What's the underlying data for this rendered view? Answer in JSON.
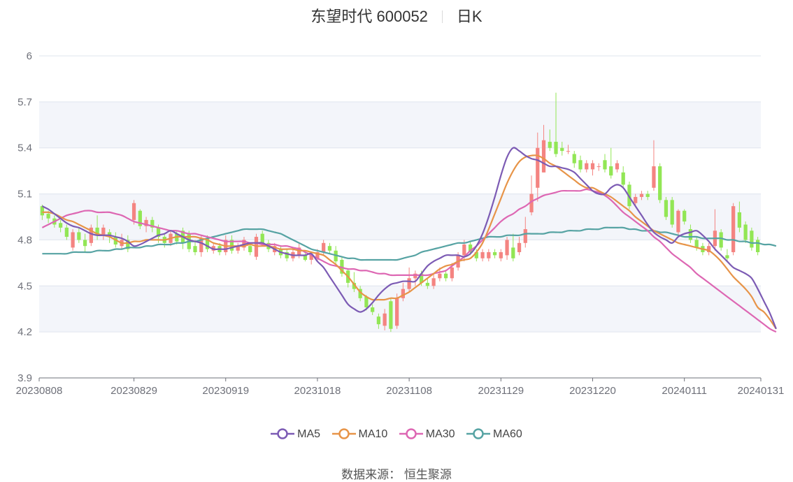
{
  "title": {
    "name_code": "东望时代 600052",
    "period": "日K"
  },
  "source": {
    "label": "数据来源：",
    "value": "恒生聚源"
  },
  "colors": {
    "up": "#f48481",
    "down": "#92e655",
    "ma5": "#7c5bb4",
    "ma10": "#e79448",
    "ma30": "#dd67b3",
    "ma60": "#56a3a3",
    "band": "#f3f5fa",
    "grid": "#dfe4ee",
    "axis": "#6e7079"
  },
  "chart_data": {
    "type": "candlestick",
    "ylim": [
      3.9,
      6.0
    ],
    "y_ticks": [
      "3.9",
      "4.2",
      "4.5",
      "4.8",
      "5.1",
      "5.4",
      "5.7",
      "6"
    ],
    "x_tick_labels": [
      "20230808",
      "20230829",
      "20230919",
      "20231018",
      "20231108",
      "20231129",
      "20231220",
      "20240111",
      "20240131"
    ],
    "x_tick_index": [
      0,
      15,
      30,
      45,
      60,
      75,
      90,
      105,
      120
    ],
    "candles": [
      [
        5.02,
        4.96,
        5.03,
        4.93
      ],
      [
        4.97,
        4.94,
        4.99,
        4.91
      ],
      [
        4.94,
        4.9,
        4.96,
        4.88
      ],
      [
        4.91,
        4.88,
        4.93,
        4.85
      ],
      [
        4.88,
        4.82,
        4.9,
        4.8
      ],
      [
        4.75,
        4.85,
        4.87,
        4.73
      ],
      [
        4.85,
        4.8,
        4.88,
        4.78
      ],
      [
        4.8,
        4.76,
        4.84,
        4.72
      ],
      [
        4.78,
        4.88,
        4.9,
        4.76
      ],
      [
        4.88,
        4.83,
        4.96,
        4.8
      ],
      [
        4.83,
        4.88,
        4.9,
        4.8
      ],
      [
        4.85,
        4.82,
        4.87,
        4.78
      ],
      [
        4.82,
        4.77,
        4.85,
        4.75
      ],
      [
        4.76,
        4.8,
        4.84,
        4.74
      ],
      [
        4.8,
        4.74,
        4.83,
        4.72
      ],
      [
        4.93,
        5.04,
        5.06,
        4.9
      ],
      [
        4.99,
        4.89,
        5.0,
        4.87
      ],
      [
        4.89,
        4.93,
        4.95,
        4.85
      ],
      [
        4.93,
        4.88,
        4.95,
        4.85
      ],
      [
        4.88,
        4.82,
        4.9,
        4.78
      ],
      [
        4.82,
        4.78,
        4.84,
        4.75
      ],
      [
        4.78,
        4.84,
        4.86,
        4.76
      ],
      [
        4.84,
        4.79,
        4.86,
        4.77
      ],
      [
        4.86,
        4.78,
        4.88,
        4.74
      ],
      [
        4.84,
        4.74,
        4.86,
        4.72
      ],
      [
        4.76,
        4.72,
        4.8,
        4.7
      ],
      [
        4.72,
        4.81,
        4.83,
        4.69
      ],
      [
        4.81,
        4.74,
        4.83,
        4.72
      ],
      [
        4.73,
        4.76,
        4.78,
        4.71
      ],
      [
        4.76,
        4.72,
        4.78,
        4.7
      ],
      [
        4.72,
        4.8,
        4.83,
        4.7
      ],
      [
        4.8,
        4.73,
        4.83,
        4.71
      ],
      [
        4.73,
        4.76,
        4.78,
        4.71
      ],
      [
        4.75,
        4.8,
        4.82,
        4.73
      ],
      [
        4.76,
        4.72,
        4.78,
        4.7
      ],
      [
        4.69,
        4.82,
        4.84,
        4.67
      ],
      [
        4.84,
        4.78,
        4.86,
        4.76
      ],
      [
        4.78,
        4.74,
        4.8,
        4.72
      ],
      [
        4.72,
        4.76,
        4.78,
        4.7
      ],
      [
        4.74,
        4.7,
        4.76,
        4.68
      ],
      [
        4.72,
        4.68,
        4.74,
        4.66
      ],
      [
        4.68,
        4.72,
        4.74,
        4.66
      ],
      [
        4.7,
        4.75,
        4.78,
        4.68
      ],
      [
        4.7,
        4.67,
        4.72,
        4.66
      ],
      [
        4.67,
        4.7,
        4.72,
        4.64
      ],
      [
        4.68,
        4.72,
        4.74,
        4.66
      ],
      [
        4.72,
        4.78,
        4.8,
        4.7
      ],
      [
        4.76,
        4.73,
        4.78,
        4.71
      ],
      [
        4.73,
        4.66,
        4.76,
        4.64
      ],
      [
        4.67,
        4.58,
        4.69,
        4.56
      ],
      [
        4.6,
        4.52,
        4.61,
        4.49
      ],
      [
        4.52,
        4.48,
        4.59,
        4.46
      ],
      [
        4.48,
        4.42,
        4.5,
        4.4
      ],
      [
        4.43,
        4.36,
        4.44,
        4.34
      ],
      [
        4.36,
        4.33,
        4.38,
        4.31
      ],
      [
        4.3,
        4.25,
        4.32,
        4.22
      ],
      [
        4.24,
        4.32,
        4.35,
        4.21
      ],
      [
        4.4,
        4.22,
        4.42,
        4.2
      ],
      [
        4.24,
        4.42,
        4.45,
        4.22
      ],
      [
        4.42,
        4.48,
        4.52,
        4.4
      ],
      [
        4.48,
        4.55,
        4.62,
        4.46
      ],
      [
        4.55,
        4.58,
        4.6,
        4.5
      ],
      [
        4.58,
        4.52,
        4.6,
        4.5
      ],
      [
        4.52,
        4.5,
        4.55,
        4.48
      ],
      [
        4.5,
        4.55,
        4.58,
        4.48
      ],
      [
        4.55,
        4.58,
        4.62,
        4.53
      ],
      [
        4.58,
        4.55,
        4.6,
        4.53
      ],
      [
        4.55,
        4.62,
        4.65,
        4.53
      ],
      [
        4.62,
        4.7,
        4.72,
        4.6
      ],
      [
        4.7,
        4.77,
        4.8,
        4.66
      ],
      [
        4.77,
        4.72,
        4.79,
        4.7
      ],
      [
        4.72,
        4.68,
        4.74,
        4.66
      ],
      [
        4.68,
        4.72,
        4.74,
        4.66
      ],
      [
        4.68,
        4.72,
        4.74,
        4.66
      ],
      [
        4.72,
        4.7,
        4.74,
        4.68
      ],
      [
        4.68,
        4.72,
        4.74,
        4.66
      ],
      [
        4.7,
        4.8,
        4.82,
        4.67
      ],
      [
        4.75,
        4.68,
        4.84,
        4.66
      ],
      [
        4.72,
        4.78,
        4.82,
        4.7
      ],
      [
        4.78,
        4.87,
        4.95,
        4.75
      ],
      [
        4.98,
        5.1,
        5.22,
        4.96
      ],
      [
        5.14,
        5.4,
        5.5,
        5.05
      ],
      [
        5.24,
        5.45,
        5.55,
        5.24
      ],
      [
        5.44,
        5.4,
        5.52,
        5.38
      ],
      [
        5.44,
        5.36,
        5.76,
        5.34
      ],
      [
        5.4,
        5.38,
        5.44,
        5.35
      ],
      [
        5.38,
        5.38,
        5.42,
        5.36
      ],
      [
        5.36,
        5.3,
        5.38,
        5.27
      ],
      [
        5.32,
        5.26,
        5.35,
        5.24
      ],
      [
        5.26,
        5.3,
        5.32,
        5.24
      ],
      [
        5.26,
        5.3,
        5.32,
        5.22
      ],
      [
        5.28,
        5.28,
        5.3,
        5.25
      ],
      [
        5.32,
        5.26,
        5.36,
        5.24
      ],
      [
        5.28,
        5.22,
        5.4,
        5.2
      ],
      [
        5.26,
        5.3,
        5.32,
        5.24
      ],
      [
        5.24,
        5.16,
        5.28,
        5.14
      ],
      [
        5.16,
        5.02,
        5.18,
        5.0
      ],
      [
        5.04,
        5.08,
        5.1,
        5.02
      ],
      [
        5.08,
        5.1,
        5.12,
        5.06
      ],
      [
        5.1,
        5.08,
        5.12,
        5.06
      ],
      [
        5.14,
        5.28,
        5.45,
        5.12
      ],
      [
        5.28,
        5.06,
        5.3,
        5.04
      ],
      [
        5.06,
        4.95,
        5.08,
        4.93
      ],
      [
        5.06,
        4.9,
        5.08,
        4.88
      ],
      [
        4.85,
        4.99,
        5.0,
        4.83
      ],
      [
        4.99,
        4.92,
        5.0,
        4.9
      ],
      [
        4.87,
        4.8,
        4.9,
        4.78
      ],
      [
        4.8,
        4.75,
        4.82,
        4.73
      ],
      [
        4.76,
        4.72,
        4.78,
        4.7
      ],
      [
        4.72,
        4.76,
        4.78,
        4.7
      ],
      [
        4.76,
        4.86,
        5.0,
        4.73
      ],
      [
        4.85,
        4.75,
        4.87,
        4.73
      ],
      [
        4.7,
        4.68,
        4.74,
        4.66
      ],
      [
        4.72,
        5.02,
        5.04,
        4.7
      ],
      [
        4.98,
        4.88,
        5.05,
        4.85
      ],
      [
        4.9,
        4.8,
        4.92,
        4.78
      ],
      [
        4.86,
        4.75,
        4.88,
        4.73
      ],
      [
        4.8,
        4.72,
        4.82,
        4.7
      ]
    ],
    "ma5": [
      5.02,
      5.0,
      4.97,
      4.94,
      4.91,
      4.89,
      4.88,
      4.86,
      4.84,
      4.83,
      4.83,
      4.83,
      4.82,
      4.81,
      4.79,
      4.76,
      4.77,
      4.79,
      4.81,
      4.83,
      4.84,
      4.86,
      4.84,
      4.82,
      4.8,
      4.79,
      4.78,
      4.76,
      4.74,
      4.74,
      4.74,
      4.75,
      4.76,
      4.77,
      4.78,
      4.78,
      4.78,
      4.76,
      4.74,
      4.72,
      4.71,
      4.7,
      4.7,
      4.7,
      4.71,
      4.66,
      4.62,
      4.56,
      4.5,
      4.44,
      4.38,
      4.35,
      4.33,
      4.35,
      4.39,
      4.44,
      4.48,
      4.51,
      4.52,
      4.53,
      4.53,
      4.53,
      4.58,
      4.63,
      4.66,
      4.68,
      4.7,
      4.7,
      4.7,
      4.69,
      4.71,
      4.76,
      4.84,
      4.95,
      5.08,
      5.22,
      5.34,
      5.4,
      5.38,
      5.35,
      5.33,
      5.32,
      5.3,
      5.28,
      5.28,
      5.27,
      5.26,
      5.24,
      5.2,
      5.16,
      5.12,
      5.1,
      5.1,
      5.14,
      5.16,
      5.14,
      5.08,
      5.02,
      4.96,
      4.9,
      4.85,
      4.82,
      4.8,
      4.78,
      4.82,
      4.84,
      4.85,
      4.86,
      4.83,
      4.79,
      4.74,
      4.7,
      4.66,
      4.62,
      4.6,
      4.58,
      4.55,
      4.48,
      4.4,
      4.32,
      4.22
    ],
    "ma10": [
      4.98,
      4.98,
      4.97,
      4.95,
      4.93,
      4.92,
      4.9,
      4.88,
      4.86,
      4.84,
      4.83,
      4.82,
      4.8,
      4.78,
      4.78,
      4.79,
      4.79,
      4.8,
      4.8,
      4.8,
      4.8,
      4.81,
      4.82,
      4.82,
      4.82,
      4.82,
      4.81,
      4.8,
      4.78,
      4.77,
      4.76,
      4.76,
      4.76,
      4.76,
      4.77,
      4.76,
      4.76,
      4.76,
      4.75,
      4.74,
      4.74,
      4.74,
      4.73,
      4.73,
      4.72,
      4.71,
      4.7,
      4.67,
      4.64,
      4.6,
      4.56,
      4.51,
      4.46,
      4.43,
      4.41,
      4.41,
      4.41,
      4.42,
      4.42,
      4.44,
      4.46,
      4.49,
      4.52,
      4.55,
      4.58,
      4.61,
      4.63,
      4.64,
      4.66,
      4.67,
      4.68,
      4.72,
      4.78,
      4.87,
      4.97,
      5.07,
      5.17,
      5.25,
      5.31,
      5.34,
      5.35,
      5.35,
      5.33,
      5.3,
      5.28,
      5.25,
      5.22,
      5.19,
      5.16,
      5.14,
      5.14,
      5.12,
      5.1,
      5.08,
      5.05,
      5.02,
      4.99,
      4.95,
      4.92,
      4.89,
      4.86,
      4.84,
      4.82,
      4.8,
      4.78,
      4.77,
      4.76,
      4.75,
      4.74,
      4.73,
      4.7,
      4.66,
      4.61,
      4.56,
      4.52,
      4.48,
      4.43,
      4.36,
      4.33,
      4.28,
      4.22
    ],
    "ma30": [
      4.88,
      4.9,
      4.92,
      4.94,
      4.96,
      4.97,
      4.98,
      4.99,
      4.99,
      4.98,
      4.98,
      4.98,
      4.97,
      4.96,
      4.94,
      4.92,
      4.91,
      4.9,
      4.89,
      4.88,
      4.87,
      4.86,
      4.86,
      4.85,
      4.84,
      4.84,
      4.83,
      4.82,
      4.81,
      4.8,
      4.79,
      4.79,
      4.79,
      4.79,
      4.78,
      4.78,
      4.77,
      4.77,
      4.77,
      4.76,
      4.76,
      4.75,
      4.74,
      4.72,
      4.7,
      4.68,
      4.66,
      4.64,
      4.63,
      4.62,
      4.61,
      4.61,
      4.6,
      4.6,
      4.59,
      4.58,
      4.58,
      4.57,
      4.57,
      4.57,
      4.57,
      4.57,
      4.57,
      4.57,
      4.58,
      4.59,
      4.6,
      4.63,
      4.66,
      4.69,
      4.73,
      4.76,
      4.8,
      4.84,
      4.88,
      4.92,
      4.95,
      4.97,
      5.0,
      5.02,
      5.05,
      5.07,
      5.09,
      5.1,
      5.11,
      5.12,
      5.12,
      5.12,
      5.12,
      5.13,
      5.12,
      5.11,
      5.09,
      5.06,
      5.02,
      4.98,
      4.95,
      4.92,
      4.89,
      4.86,
      4.82,
      4.79,
      4.75,
      4.71,
      4.68,
      4.65,
      4.62,
      4.58,
      4.55,
      4.52,
      4.49,
      4.46,
      4.43,
      4.4,
      4.37,
      4.34,
      4.31,
      4.28,
      4.25,
      4.22,
      4.2
    ],
    "ma60": [
      4.71,
      4.71,
      4.71,
      4.71,
      4.71,
      4.72,
      4.72,
      4.72,
      4.72,
      4.73,
      4.73,
      4.73,
      4.74,
      4.74,
      4.75,
      4.75,
      4.75,
      4.76,
      4.76,
      4.77,
      4.77,
      4.77,
      4.78,
      4.78,
      4.79,
      4.79,
      4.8,
      4.81,
      4.82,
      4.83,
      4.84,
      4.85,
      4.86,
      4.87,
      4.87,
      4.87,
      4.87,
      4.86,
      4.85,
      4.84,
      4.82,
      4.8,
      4.78,
      4.76,
      4.74,
      4.73,
      4.72,
      4.71,
      4.7,
      4.69,
      4.68,
      4.68,
      4.67,
      4.67,
      4.67,
      4.67,
      4.67,
      4.67,
      4.67,
      4.68,
      4.69,
      4.7,
      4.72,
      4.73,
      4.74,
      4.75,
      4.76,
      4.77,
      4.78,
      4.78,
      4.79,
      4.8,
      4.81,
      4.82,
      4.82,
      4.82,
      4.83,
      4.83,
      4.83,
      4.84,
      4.84,
      4.84,
      4.84,
      4.85,
      4.85,
      4.85,
      4.86,
      4.86,
      4.86,
      4.87,
      4.87,
      4.87,
      4.88,
      4.88,
      4.88,
      4.88,
      4.87,
      4.87,
      4.86,
      4.86,
      4.86,
      4.85,
      4.85,
      4.84,
      4.83,
      4.82,
      4.82,
      4.82,
      4.81,
      4.81,
      4.81,
      4.81,
      4.8,
      4.8,
      4.79,
      4.79,
      4.78,
      4.78,
      4.77,
      4.77,
      4.76
    ],
    "legend": [
      "MA5",
      "MA10",
      "MA30",
      "MA60"
    ]
  }
}
